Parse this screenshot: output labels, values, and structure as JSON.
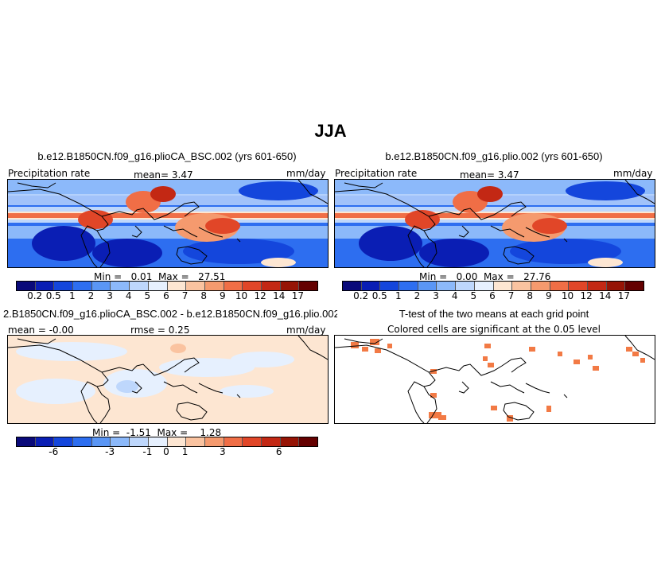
{
  "title": "JJA",
  "panels": {
    "p1": {
      "title": "b.e12.B1850CN.f09_g16.plioCA_BSC.002 (yrs 601-650)",
      "left_label": "Precipitation rate",
      "center_label": "mean=    3.47",
      "right_label": "mm/day",
      "minmax": "Min =   0.01  Max =   27.51"
    },
    "p2": {
      "title": "b.e12.B1850CN.f09_g16.plio.002 (yrs 601-650)",
      "left_label": "Precipitation rate",
      "center_label": "mean=    3.47",
      "right_label": "mm/day",
      "minmax": "Min =   0.00  Max =   27.76"
    },
    "p3": {
      "title": "2.B1850CN.f09_g16.plioCA_BSC.002 - b.e12.B1850CN.f09_g16.plio.002",
      "left_label": "mean = -0.00",
      "center_label": "rmse =    0.25",
      "right_label": "mm/day",
      "minmax": "Min =  -1.51  Max =    1.28"
    },
    "p4": {
      "title": "T-test of the two means at each grid point",
      "subtitle": "Colored cells are significant at the 0.05 level"
    }
  },
  "colorbars": {
    "precip": {
      "colors": [
        "#0a0a7a",
        "#0a1eb4",
        "#1446dc",
        "#2d6ef0",
        "#5a96f5",
        "#8cb9fa",
        "#bed7fc",
        "#e6f0fe",
        "#fde6d2",
        "#fac3a0",
        "#f59a6e",
        "#f06e46",
        "#e14628",
        "#c32814",
        "#961405",
        "#640000"
      ],
      "labels": [
        "0.2",
        "0.5",
        "1",
        "2",
        "3",
        "4",
        "5",
        "6",
        "7",
        "8",
        "9",
        "10",
        "12",
        "14",
        "17"
      ]
    },
    "diff": {
      "colors": [
        "#0a0a7a",
        "#0a1eb4",
        "#1446dc",
        "#2d6ef0",
        "#5a96f5",
        "#8cb9fa",
        "#bed7fc",
        "#e6f0fe",
        "#fde6d2",
        "#fac3a0",
        "#f59a6e",
        "#f06e46",
        "#e14628",
        "#c32814",
        "#961405",
        "#640000"
      ],
      "labels": [
        "-6",
        "-3",
        "-1",
        "0",
        "1",
        "3",
        "6"
      ]
    }
  },
  "significance_color": "#f27a45"
}
